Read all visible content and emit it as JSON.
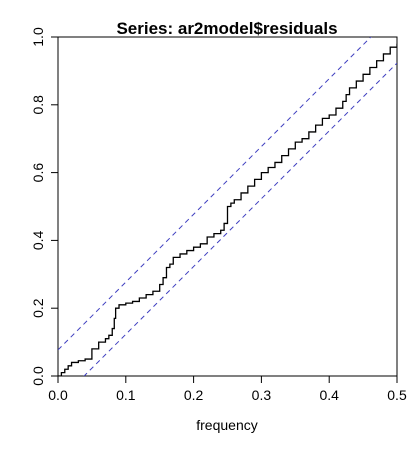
{
  "chart_data": {
    "type": "line",
    "title": "Series:  ar2model$residuals",
    "xlabel": "frequency",
    "ylabel": "",
    "xlim": [
      0,
      0.5
    ],
    "ylim": [
      0,
      1
    ],
    "x_ticks": [
      "0.0",
      "0.1",
      "0.2",
      "0.3",
      "0.4",
      "0.5"
    ],
    "y_ticks": [
      "0.0",
      "0.2",
      "0.4",
      "0.6",
      "0.8",
      "1.0"
    ],
    "grid": false,
    "series": [
      {
        "style": "step",
        "color": "#000000",
        "x": [
          0.0,
          0.005,
          0.01,
          0.015,
          0.02,
          0.03,
          0.04,
          0.05,
          0.06,
          0.07,
          0.075,
          0.08,
          0.083,
          0.085,
          0.09,
          0.1,
          0.11,
          0.12,
          0.13,
          0.14,
          0.15,
          0.155,
          0.16,
          0.165,
          0.17,
          0.18,
          0.19,
          0.2,
          0.21,
          0.22,
          0.23,
          0.24,
          0.245,
          0.25,
          0.255,
          0.26,
          0.27,
          0.28,
          0.29,
          0.3,
          0.31,
          0.32,
          0.33,
          0.34,
          0.35,
          0.36,
          0.37,
          0.38,
          0.39,
          0.4,
          0.41,
          0.42,
          0.425,
          0.43,
          0.44,
          0.45,
          0.46,
          0.47,
          0.48,
          0.49,
          0.5
        ],
        "y": [
          0.0,
          0.01,
          0.02,
          0.03,
          0.04,
          0.045,
          0.05,
          0.08,
          0.1,
          0.11,
          0.12,
          0.14,
          0.17,
          0.2,
          0.21,
          0.215,
          0.22,
          0.23,
          0.24,
          0.25,
          0.27,
          0.29,
          0.32,
          0.33,
          0.35,
          0.36,
          0.37,
          0.38,
          0.39,
          0.41,
          0.42,
          0.43,
          0.45,
          0.5,
          0.51,
          0.52,
          0.54,
          0.56,
          0.58,
          0.6,
          0.615,
          0.63,
          0.65,
          0.67,
          0.69,
          0.7,
          0.72,
          0.74,
          0.76,
          0.77,
          0.79,
          0.81,
          0.83,
          0.85,
          0.87,
          0.89,
          0.91,
          0.93,
          0.95,
          0.97,
          0.98
        ]
      },
      {
        "style": "dashed",
        "color": "#4040c0",
        "x": [
          0.0,
          0.5
        ],
        "y": [
          0.077,
          1.077
        ]
      },
      {
        "style": "dashed",
        "color": "#4040c0",
        "x": [
          0.0,
          0.5
        ],
        "y": [
          -0.077,
          0.923
        ]
      }
    ]
  }
}
